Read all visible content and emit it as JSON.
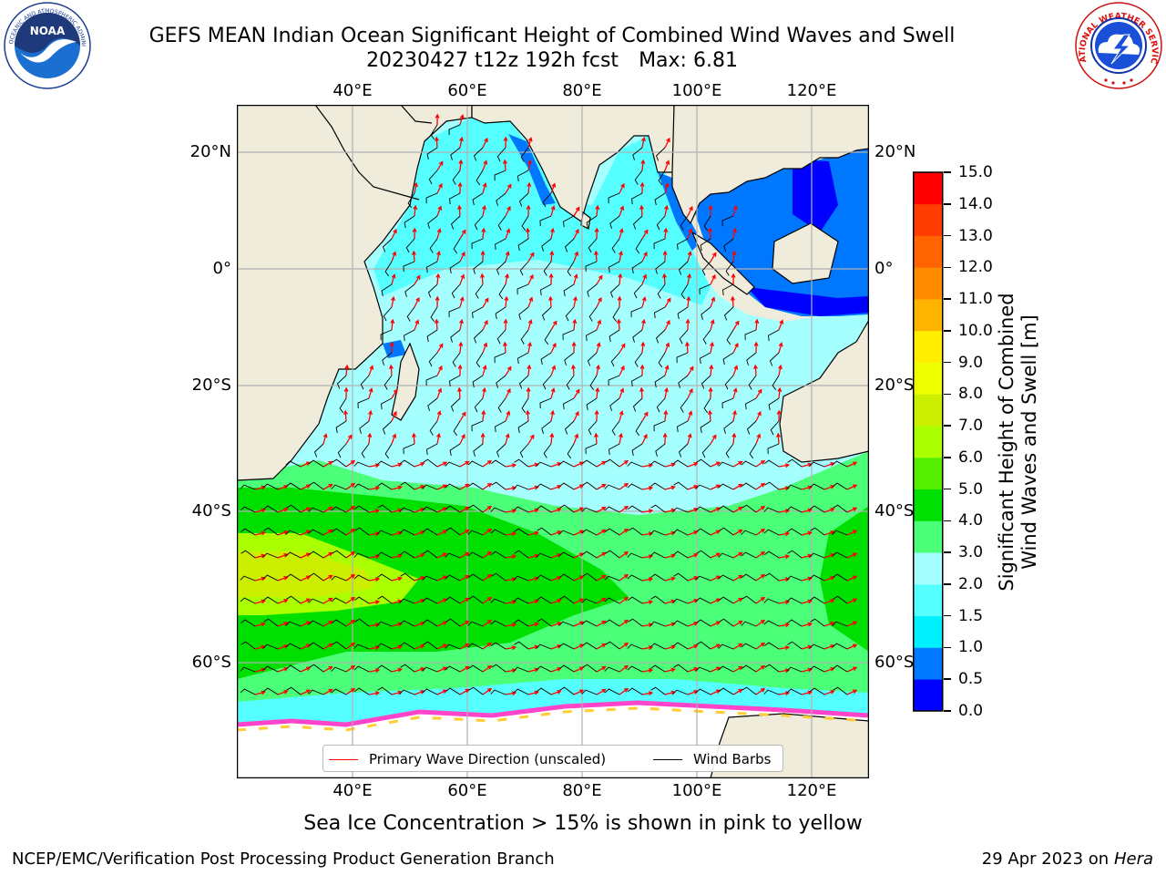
{
  "header": {
    "title_line1": "GEFS MEAN Indian Ocean Significant Height of Combined Wind Waves and Swell",
    "title_line2": "20230427 t12z 192h fcst",
    "max_label": "Max: 6.81"
  },
  "logos": {
    "left": {
      "icon": "noaa-logo",
      "arc_text": "NATIONAL OCEANIC AND ATMOSPHERIC ADMINISTRATION",
      "bottom_text": "U.S. DEPARTMENT OF COMMERCE",
      "center_text": "NOAA"
    },
    "right": {
      "icon": "nws-logo",
      "arc_text": "NATIONAL WEATHER SERVICE"
    }
  },
  "map": {
    "lon_ticks": [
      "40°E",
      "60°E",
      "80°E",
      "100°E",
      "120°E"
    ],
    "lat_ticks": [
      "20°N",
      "0°",
      "20°S",
      "40°S",
      "60°S"
    ],
    "extent": {
      "lon": [
        20,
        130
      ],
      "lat": [
        -72,
        28
      ]
    },
    "colors": {
      "land": "#efecdc",
      "ice": "#ffffff",
      "wave_arrow": "#ff0000",
      "wind_barb": "#000000",
      "grid": "#b0b0b0"
    }
  },
  "legend": {
    "wave_label": "Primary Wave Direction (unscaled)",
    "wind_label": "Wind Barbs"
  },
  "colorbar": {
    "title_line1": "Significant Height of Combined",
    "title_line2": "Wind Waves and Swell [m]",
    "ticks": [
      "0.0",
      "0.5",
      "1.0",
      "1.5",
      "2.0",
      "3.0",
      "4.0",
      "5.0",
      "6.0",
      "7.0",
      "8.0",
      "9.0",
      "10.0",
      "11.0",
      "12.0",
      "13.0",
      "14.0",
      "15.0"
    ],
    "colors": [
      "#0000ff",
      "#0077ff",
      "#00f0ff",
      "#55ffff",
      "#a6ffff",
      "#4cff78",
      "#00e000",
      "#55ee00",
      "#aaff00",
      "#ccee00",
      "#eeff00",
      "#ffee00",
      "#ffb400",
      "#ff8c00",
      "#ff6400",
      "#ff3c00",
      "#ff0000"
    ]
  },
  "note": "Sea Ice Concentration > 15% is shown in pink to yellow",
  "footer": {
    "left": "NCEP/EMC/Verification Post Processing Product Generation Branch",
    "right_prefix": "29 Apr 2023 on ",
    "right_host": "Hera"
  }
}
